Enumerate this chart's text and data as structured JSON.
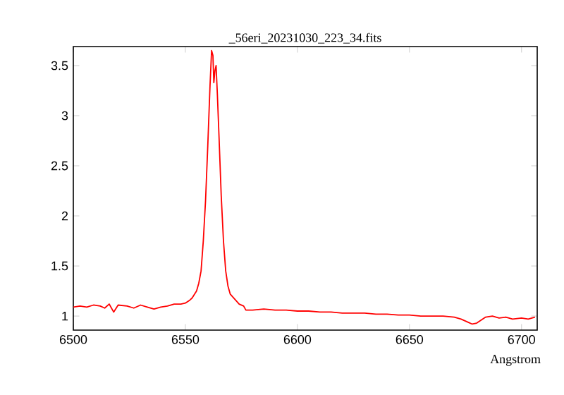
{
  "chart_data": {
    "type": "line",
    "title": "_56eri_20231030_223_34.fits",
    "xlabel": "Angstrom",
    "xlim": [
      6500,
      6707
    ],
    "xticks": [
      6500,
      6550,
      6600,
      6650,
      6700
    ],
    "ylim": [
      0.86,
      3.69
    ],
    "yticks": [
      1,
      1.5,
      2,
      2.5,
      3,
      3.5
    ],
    "grid": false,
    "marker": "none",
    "line_style": "solid",
    "x": [
      6500,
      6503,
      6506,
      6509,
      6512,
      6514,
      6516,
      6518,
      6520,
      6524,
      6527,
      6530,
      6533,
      6536,
      6539,
      6542,
      6545,
      6548,
      6550,
      6552,
      6553,
      6555,
      6556,
      6557,
      6558,
      6559,
      6560,
      6561,
      6561.7,
      6562.3,
      6562.7,
      6563.2,
      6563.7,
      6564.3,
      6565,
      6566,
      6567,
      6568,
      6569,
      6570,
      6572,
      6574,
      6576,
      6577,
      6580,
      6585,
      6590,
      6595,
      6600,
      6605,
      6610,
      6615,
      6620,
      6625,
      6630,
      6635,
      6640,
      6645,
      6650,
      6655,
      6660,
      6665,
      6670,
      6673,
      6676,
      6678,
      6680,
      6682,
      6684,
      6687,
      6690,
      6693,
      6696,
      6700,
      6703,
      6706
    ],
    "series": [
      {
        "color": "#ff0000",
        "values": [
          1.09,
          1.1,
          1.09,
          1.11,
          1.1,
          1.08,
          1.12,
          1.04,
          1.11,
          1.1,
          1.08,
          1.11,
          1.09,
          1.07,
          1.09,
          1.1,
          1.12,
          1.12,
          1.13,
          1.16,
          1.18,
          1.25,
          1.33,
          1.45,
          1.75,
          2.15,
          2.7,
          3.3,
          3.65,
          3.6,
          3.33,
          3.45,
          3.5,
          3.2,
          2.8,
          2.2,
          1.75,
          1.45,
          1.3,
          1.22,
          1.17,
          1.12,
          1.1,
          1.06,
          1.06,
          1.07,
          1.06,
          1.06,
          1.05,
          1.05,
          1.04,
          1.04,
          1.03,
          1.03,
          1.03,
          1.02,
          1.02,
          1.01,
          1.01,
          1.0,
          1.0,
          1.0,
          0.99,
          0.97,
          0.94,
          0.92,
          0.93,
          0.96,
          0.99,
          1.0,
          0.98,
          0.99,
          0.97,
          0.98,
          0.97,
          0.99
        ]
      }
    ]
  }
}
